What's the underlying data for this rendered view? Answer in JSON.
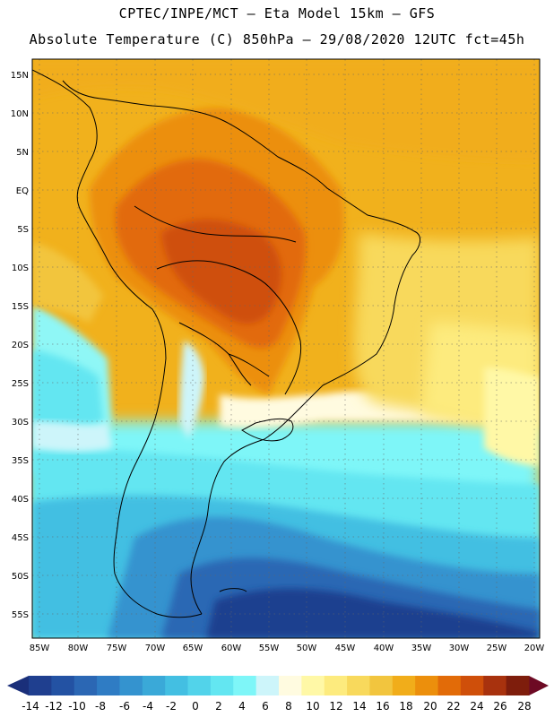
{
  "header": {
    "line1": "CPTEC/INPE/MCT —  Eta Model 15km — GFS",
    "line2": "Absolute Temperature (C) 850hPa — 29/08/2020 12UTC fct=45h"
  },
  "axes": {
    "lat_labels": [
      "15N",
      "10N",
      "5N",
      "EQ",
      "5S",
      "10S",
      "15S",
      "20S",
      "25S",
      "30S",
      "35S",
      "40S",
      "45S",
      "50S",
      "55S"
    ],
    "lon_labels": [
      "85W",
      "80W",
      "75W",
      "70W",
      "65W",
      "60W",
      "55W",
      "50W",
      "45W",
      "40W",
      "35W",
      "30W",
      "25W",
      "20W"
    ]
  },
  "colorbar": {
    "labels": [
      "-14",
      "-12",
      "-10",
      "-8",
      "-6",
      "-4",
      "-2",
      "0",
      "2",
      "4",
      "6",
      "8",
      "10",
      "12",
      "14",
      "16",
      "18",
      "20",
      "22",
      "24",
      "26",
      "28"
    ],
    "colors": [
      "#1f3f8f",
      "#2352a3",
      "#2b67b4",
      "#2f7cc4",
      "#3493cf",
      "#3aa9d8",
      "#43bfe2",
      "#52d3ea",
      "#63e6f1",
      "#7ef6f8",
      "#cdf5fa",
      "#fffbe0",
      "#fff8a6",
      "#fdeb7e",
      "#f8d95c",
      "#f2c53e",
      "#f1ad1a",
      "#ec8f0c",
      "#e26b08",
      "#cf4f0a",
      "#a8320e",
      "#7e1d0c"
    ],
    "low_arrow_color": "#1a2f7a",
    "high_arrow_color": "#6d0a24"
  }
}
